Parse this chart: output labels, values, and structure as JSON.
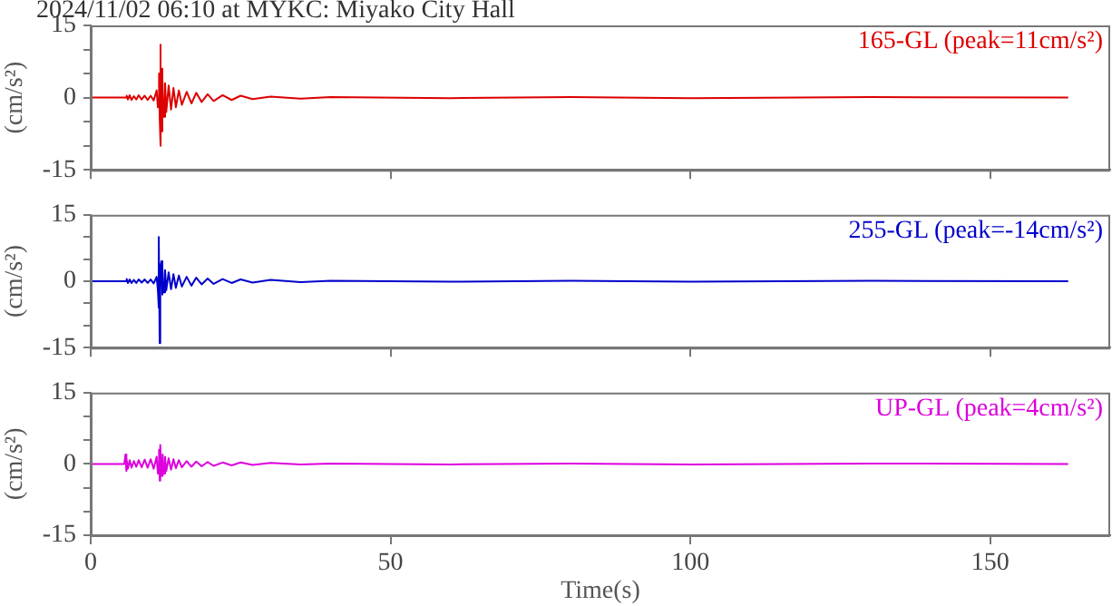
{
  "chart_data": [
    {
      "type": "line",
      "title": "2024/11/02 06:10 at MYKC: Miyako City Hall",
      "ylabel": "(cm/s²)",
      "xlim": [
        0,
        170
      ],
      "xticks": [
        0,
        50,
        100,
        150
      ],
      "ylim": [
        -15,
        15
      ],
      "yticks": [
        -15,
        {
          "value": -10,
          "label": null
        },
        {
          "value": -5,
          "label": null
        },
        0,
        {
          "value": 5,
          "label": null
        },
        {
          "value": 10,
          "label": null
        },
        15
      ],
      "tick_labels": "y",
      "series": [
        {
          "name": "165-GL (peak=11cm/s²)",
          "color": "#dd0000",
          "x": [
            0,
            5.8,
            6.0,
            6.2,
            6.5,
            6.8,
            7.2,
            7.6,
            8,
            8.5,
            9,
            9.5,
            10,
            10.5,
            11,
            11.2,
            11.4,
            11.5,
            11.6,
            11.7,
            11.8,
            11.9,
            12.0,
            12.2,
            12.4,
            12.6,
            13,
            13.4,
            13.8,
            14.2,
            14.7,
            15.2,
            16,
            16.8,
            17.6,
            18.5,
            19.5,
            20.5,
            22,
            23.5,
            25,
            27,
            30,
            35,
            40,
            60,
            80,
            100,
            130,
            163
          ],
          "values": [
            0,
            0,
            0.4,
            -0.4,
            0.5,
            -0.5,
            0.3,
            -0.4,
            0.5,
            -0.4,
            0.4,
            -0.5,
            0.4,
            -0.6,
            1.5,
            -2,
            5,
            -4,
            11,
            -10,
            6,
            -7,
            4,
            -4,
            3,
            -3,
            2.5,
            -2.5,
            2,
            -2,
            1.5,
            -1.5,
            1.2,
            -1.2,
            1,
            -0.9,
            0.7,
            -0.7,
            0.5,
            -0.5,
            0.4,
            -0.3,
            0.2,
            -0.2,
            0.1,
            -0.1,
            0.1,
            -0.1,
            0.1,
            0
          ]
        }
      ]
    },
    {
      "type": "line",
      "ylabel": "(cm/s²)",
      "xlim": [
        0,
        170
      ],
      "xticks": [
        0,
        50,
        100,
        150
      ],
      "ylim": [
        -15,
        15
      ],
      "yticks": [
        -15,
        {
          "value": -10,
          "label": null
        },
        {
          "value": -5,
          "label": null
        },
        0,
        {
          "value": 5,
          "label": null
        },
        {
          "value": 10,
          "label": null
        },
        15
      ],
      "tick_labels": "y",
      "series": [
        {
          "name": "255-GL (peak=-14cm/s²)",
          "color": "#0000cc",
          "x": [
            0,
            5.8,
            6.0,
            6.2,
            6.5,
            6.8,
            7.2,
            7.6,
            8,
            8.5,
            9,
            9.5,
            10,
            10.5,
            11,
            11.2,
            11.3,
            11.4,
            11.5,
            11.6,
            11.8,
            11.9,
            12.0,
            12.2,
            12.4,
            12.6,
            13,
            13.4,
            13.8,
            14.2,
            14.7,
            15.2,
            16,
            16.8,
            17.6,
            18.5,
            19.5,
            20.5,
            22,
            23.5,
            25,
            27,
            30,
            35,
            40,
            60,
            80,
            100,
            130,
            163
          ],
          "values": [
            0,
            0,
            0.5,
            -0.4,
            0.4,
            -0.4,
            0.3,
            -0.4,
            0.4,
            -0.3,
            0.4,
            -0.4,
            0.4,
            -0.5,
            1,
            -2,
            -6,
            10,
            -14,
            3,
            4.5,
            -3,
            3,
            -2.5,
            2.5,
            -2,
            2,
            -1.8,
            1.6,
            -1.5,
            1.3,
            -1.2,
            1,
            -1,
            0.8,
            -0.7,
            0.6,
            -0.6,
            0.5,
            -0.4,
            0.4,
            -0.3,
            0.3,
            -0.2,
            0.1,
            -0.1,
            0.1,
            -0.1,
            0.1,
            0
          ]
        }
      ]
    },
    {
      "type": "line",
      "ylabel": "(cm/s²)",
      "xlabel": "Time(s)",
      "xlim": [
        0,
        170
      ],
      "xticks": [
        0,
        50,
        100,
        150
      ],
      "ylim": [
        -15,
        15
      ],
      "yticks": [
        -15,
        {
          "value": -10,
          "label": null
        },
        {
          "value": -5,
          "label": null
        },
        0,
        {
          "value": 5,
          "label": null
        },
        {
          "value": 10,
          "label": null
        },
        15
      ],
      "series": [
        {
          "name": "UP-GL (peak=4cm/s²)",
          "color": "#dd00dd",
          "x": [
            0,
            5.6,
            5.8,
            5.9,
            6.0,
            6.2,
            6.5,
            6.8,
            7.2,
            7.6,
            8,
            8.5,
            9,
            9.5,
            10,
            10.5,
            11,
            11.2,
            11.4,
            11.5,
            11.6,
            11.8,
            12.0,
            12.2,
            12.4,
            12.6,
            13,
            13.4,
            13.8,
            14.2,
            14.7,
            15.2,
            16,
            16.8,
            17.6,
            18.5,
            19.5,
            20.5,
            22,
            23.5,
            25,
            27,
            30,
            35,
            40,
            60,
            80,
            100,
            130,
            163
          ],
          "values": [
            0,
            0,
            2,
            -1.5,
            1.2,
            -1,
            0.8,
            -0.8,
            0.6,
            -0.6,
            0.8,
            -0.7,
            0.9,
            -0.8,
            1,
            -1,
            1.5,
            -2,
            3,
            -3.5,
            4,
            -2.5,
            2,
            -2,
            1.5,
            -1.5,
            1.2,
            -1.2,
            1,
            -0.9,
            0.8,
            -0.7,
            0.6,
            -0.6,
            0.5,
            -0.5,
            0.4,
            -0.4,
            0.3,
            -0.3,
            0.3,
            -0.2,
            0.2,
            -0.1,
            0.1,
            -0.1,
            0.1,
            -0.1,
            0.1,
            0
          ]
        }
      ]
    }
  ]
}
